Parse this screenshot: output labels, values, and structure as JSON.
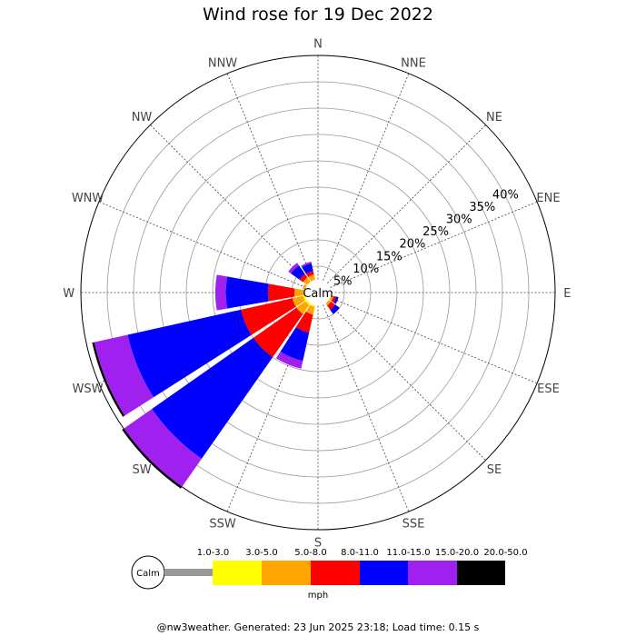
{
  "chart_data": {
    "type": "windrose",
    "title": "Wind rose for 19 Dec 2022",
    "unit": "mph",
    "calm_label": "Calm",
    "directions": [
      "N",
      "NNE",
      "NE",
      "ENE",
      "E",
      "ESE",
      "SE",
      "SSE",
      "S",
      "SSW",
      "SW",
      "WSW",
      "W",
      "WNW",
      "NW",
      "NNW"
    ],
    "radial_ticks": [
      5,
      10,
      15,
      20,
      25,
      30,
      35,
      40
    ],
    "radial_tick_labels": [
      "5%",
      "10%",
      "15%",
      "20%",
      "25%",
      "30%",
      "35%",
      "40%"
    ],
    "rmax": 45,
    "calm_radius_pct": 2.5,
    "bins": [
      {
        "label": "1.0-3.0",
        "color": "#999999"
      },
      {
        "label": "3.0-5.0",
        "color": "#ffff00"
      },
      {
        "label": "5.0-8.0",
        "color": "#ffa500"
      },
      {
        "label": "8.0-11.0",
        "color": "#ff0000"
      },
      {
        "label": "11.0-15.0",
        "color": "#0000ff"
      },
      {
        "label": "15.0-20.0",
        "color": "#a020f0"
      },
      {
        "label": "20.0-50.0",
        "color": "#000000"
      }
    ],
    "series": [
      {
        "direction": "WNW",
        "values": [
          0,
          0,
          0.5,
          0,
          0,
          0,
          0
        ]
      },
      {
        "direction": "NW",
        "values": [
          0,
          0,
          1.0,
          0.8,
          2.0,
          0.6,
          0
        ]
      },
      {
        "direction": "NNW",
        "values": [
          0,
          0,
          1.0,
          0.7,
          1.5,
          0.3,
          0
        ]
      },
      {
        "direction": "W",
        "values": [
          0,
          0.3,
          1.7,
          5.0,
          8.0,
          2.0,
          0
        ]
      },
      {
        "direction": "WSW",
        "values": [
          0,
          0.4,
          2.1,
          10.0,
          22.0,
          6.5,
          0.4
        ]
      },
      {
        "direction": "SW",
        "values": [
          0,
          0.4,
          2.1,
          10.0,
          23.5,
          6.5,
          0.4
        ]
      },
      {
        "direction": "SSW",
        "values": [
          0,
          0.3,
          1.5,
          3.5,
          5.5,
          1.5,
          0
        ]
      },
      {
        "direction": "SE",
        "values": [
          0,
          0,
          0.5,
          1.0,
          1.0,
          0,
          0
        ]
      },
      {
        "direction": "ESE",
        "values": [
          0,
          0,
          0.5,
          0.5,
          0.5,
          0,
          0
        ]
      }
    ],
    "grid": true,
    "legend_position": "bottom"
  },
  "footer": "@nw3weather. Generated: 23 Jun 2025 23:18; Load time: 0.15 s"
}
